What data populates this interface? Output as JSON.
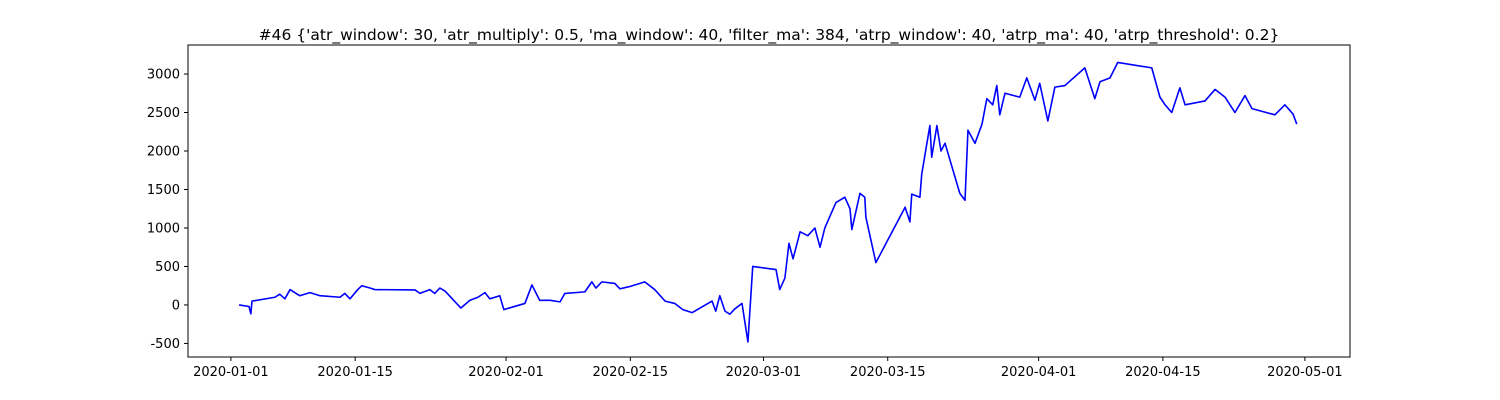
{
  "chart_data": {
    "type": "line",
    "title": "#46 {'atr_window': 30, 'atr_multiply': 0.5, 'ma_window': 40, 'filter_ma': 384, 'atrp_window': 40, 'atrp_ma': 40, 'atrp_threshold': 0.2}",
    "color": "#0000ff",
    "x": [
      "2020-01-01 22:00",
      "2020-01-03 01:00",
      "2020-01-03 06:00",
      "2020-01-03 09:00",
      "2020-01-05 23:00",
      "2020-01-06 12:00",
      "2020-01-07 02:00",
      "2020-01-07 16:00",
      "2020-01-08 18:00",
      "2020-01-09 22:00",
      "2020-01-11 01:00",
      "2020-01-13 07:00",
      "2020-01-13 20:00",
      "2020-01-14 10:00",
      "2020-01-15 07:00",
      "2020-01-15 18:00",
      "2020-01-16 16:00",
      "2020-01-17 05:00",
      "2020-01-21 18:00",
      "2020-01-22 07:00",
      "2020-01-23 10:00",
      "2020-01-23 23:00",
      "2020-01-24 13:00",
      "2020-01-25 03:00",
      "2020-01-26 22:00",
      "2020-01-27 22:00",
      "2020-01-28 20:00",
      "2020-01-29 15:00",
      "2020-01-30 04:00",
      "2020-01-31 07:00",
      "2020-01-31 18:00",
      "2020-02-03 03:00",
      "2020-02-03 22:00",
      "2020-02-04 19:00",
      "2020-02-05 23:00",
      "2020-02-07 02:00",
      "2020-02-07 15:00",
      "2020-02-09 21:00",
      "2020-02-10 16:00",
      "2020-02-11 03:00",
      "2020-02-11 19:00",
      "2020-02-13 06:00",
      "2020-02-13 20:00",
      "2020-02-14 23:00",
      "2020-02-16 15:00",
      "2020-02-17 18:00",
      "2020-02-18 22:00",
      "2020-02-20 00:00",
      "2020-02-20 22:00",
      "2020-02-21 23:00",
      "2020-02-24 05:00",
      "2020-02-24 15:00",
      "2020-02-25 02:00",
      "2020-02-25 16:00",
      "2020-02-26 05:00",
      "2020-02-26 19:00",
      "2020-02-27 14:00",
      "2020-02-28 06:00",
      "2020-02-28 19:00",
      "2020-03-02 10:00",
      "2020-03-02 20:00",
      "2020-03-03 10:00",
      "2020-03-03 21:00",
      "2020-03-04 08:00",
      "2020-03-05 03:00",
      "2020-03-06 00:00",
      "2020-03-06 19:00",
      "2020-03-07 09:00",
      "2020-03-07 22:00",
      "2020-03-09 04:00",
      "2020-03-10 04:00",
      "2020-03-10 18:00",
      "2020-03-10 23:00",
      "2020-03-11 21:00",
      "2020-03-12 10:00",
      "2020-03-12 13:00",
      "2020-03-13 16:00",
      "2020-03-16 23:00",
      "2020-03-17 12:00",
      "2020-03-17 17:00",
      "2020-03-18 15:00",
      "2020-03-18 20:00",
      "2020-03-19 18:00",
      "2020-03-19 23:00",
      "2020-03-20 13:00",
      "2020-03-21 00:00",
      "2020-03-21 11:00",
      "2020-03-23 03:00",
      "2020-03-23 17:00",
      "2020-03-24 01:00",
      "2020-03-24 20:00",
      "2020-03-25 15:00",
      "2020-03-26 04:00",
      "2020-03-26 20:00",
      "2020-03-27 07:00",
      "2020-03-27 15:00",
      "2020-03-28 05:00",
      "2020-03-29 21:00",
      "2020-03-30 16:00",
      "2020-03-31 14:00",
      "2020-04-01 03:00",
      "2020-04-02 01:00",
      "2020-04-02 20:00",
      "2020-04-03 23:00",
      "2020-04-06 05:00",
      "2020-04-07 08:00",
      "2020-04-07 22:00",
      "2020-04-09 01:00",
      "2020-04-09 22:00",
      "2020-04-13 18:00",
      "2020-04-14 16:00",
      "2020-04-15 06:00",
      "2020-04-16 00:00",
      "2020-04-16 22:00",
      "2020-04-17 12:00",
      "2020-04-19 18:00",
      "2020-04-20 21:00",
      "2020-04-22 00:00",
      "2020-04-23 03:00",
      "2020-04-24 06:00",
      "2020-04-25 01:00",
      "2020-04-27 15:00",
      "2020-04-28 18:00",
      "2020-04-29 16:00",
      "2020-04-30 02:00"
    ],
    "values": [
      0,
      -20,
      -115,
      50,
      100,
      140,
      80,
      200,
      120,
      160,
      120,
      100,
      150,
      80,
      200,
      250,
      220,
      200,
      195,
      150,
      200,
      150,
      220,
      180,
      -40,
      60,
      100,
      160,
      80,
      120,
      -60,
      20,
      260,
      60,
      60,
      40,
      150,
      170,
      300,
      220,
      300,
      280,
      210,
      240,
      300,
      200,
      50,
      20,
      -60,
      -100,
      50,
      -80,
      120,
      -80,
      -120,
      -50,
      20,
      -480,
      500,
      460,
      200,
      350,
      800,
      600,
      950,
      900,
      1000,
      750,
      1000,
      1330,
      1400,
      1250,
      980,
      1450,
      1400,
      1140,
      550,
      1270,
      1080,
      1440,
      1400,
      1700,
      2330,
      1920,
      2330,
      2000,
      2100,
      1450,
      1360,
      2270,
      2100,
      2350,
      2680,
      2600,
      2850,
      2470,
      2750,
      2700,
      2950,
      2660,
      2880,
      2390,
      2830,
      2850,
      3080,
      2680,
      2900,
      2950,
      3150,
      3080,
      2700,
      2600,
      2500,
      2820,
      2600,
      2650,
      2800,
      2700,
      2500,
      2720,
      2550,
      2470,
      2600,
      2480,
      2350
    ],
    "xlim": [
      "2019-12-27 04:00",
      "2020-05-06 02:00"
    ],
    "xticks": [
      "2020-01-01",
      "2020-01-15",
      "2020-02-01",
      "2020-02-15",
      "2020-03-01",
      "2020-03-15",
      "2020-04-01",
      "2020-04-15",
      "2020-05-01"
    ],
    "ylim": [
      -676,
      3377
    ],
    "yticks": [
      -500,
      0,
      500,
      1000,
      1500,
      2000,
      2500,
      3000
    ]
  }
}
